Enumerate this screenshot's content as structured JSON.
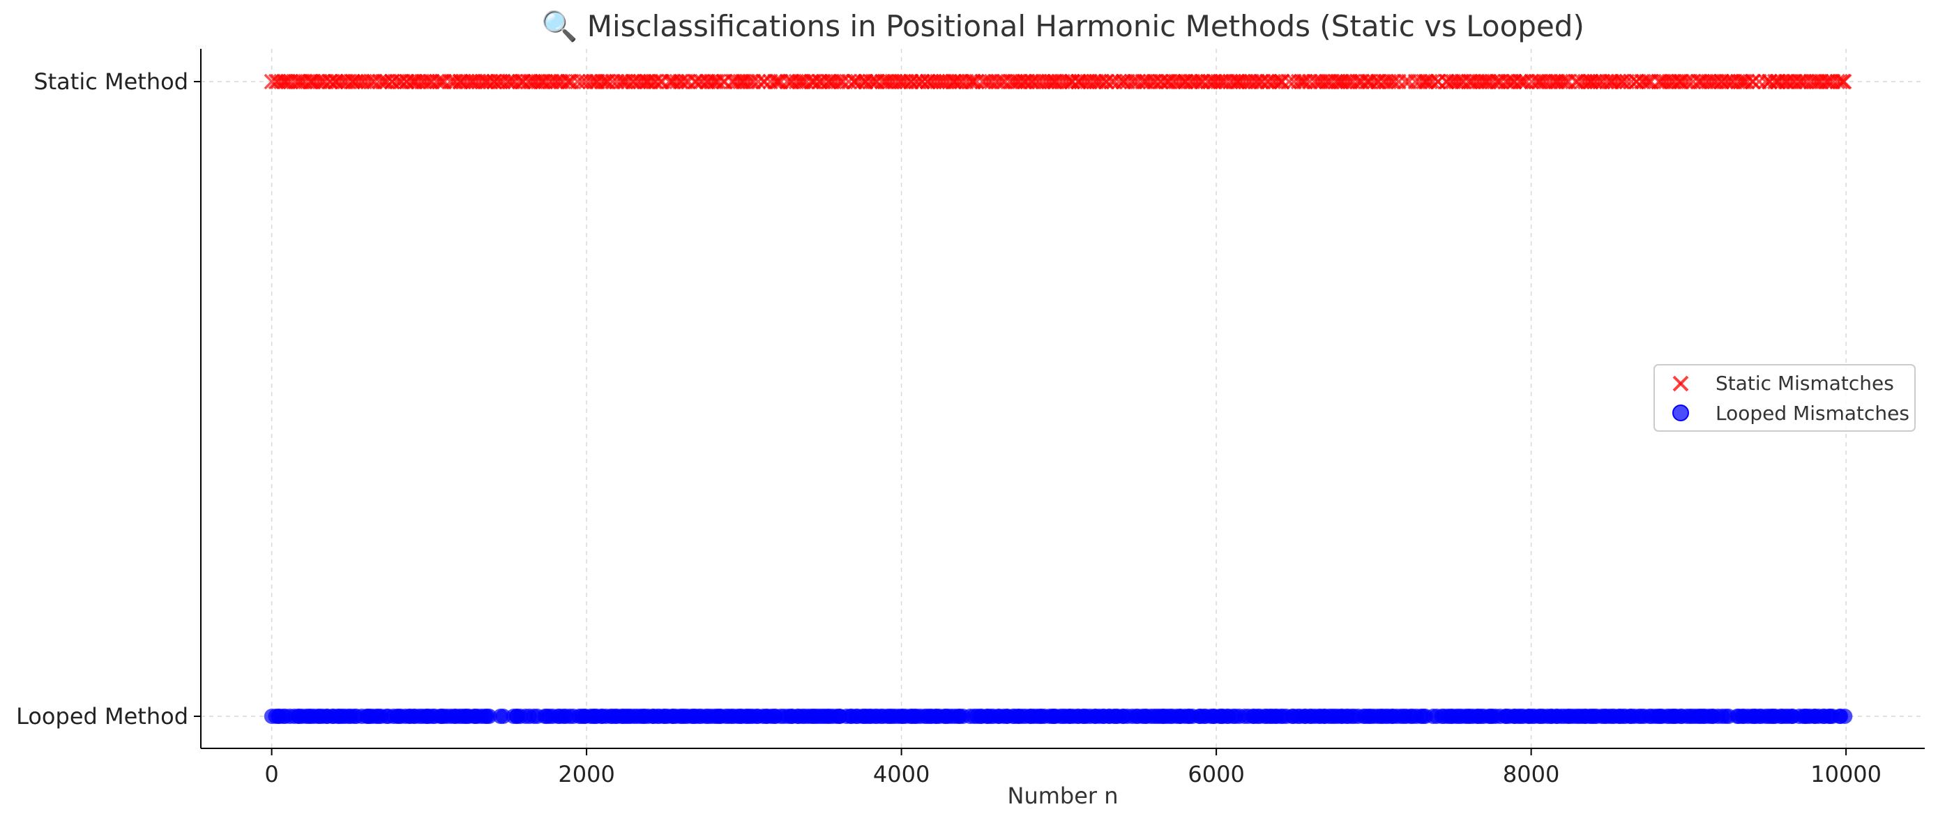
{
  "chart_data": {
    "type": "scatter",
    "title": "🔍 Misclassifications in Positional Harmonic Methods (Static vs Looped)",
    "xlabel": "Number n",
    "ylabel": "",
    "xlim": [
      -450,
      10500
    ],
    "x_ticks": [
      0,
      2000,
      4000,
      6000,
      8000,
      10000
    ],
    "y_categories": [
      "Looped Method",
      "Static Method"
    ],
    "grid": true,
    "legend_position": "center-right",
    "series": [
      {
        "name": "Static Mismatches",
        "category": "Static Method",
        "marker": "x",
        "color": "#ff0000",
        "x_range": [
          1,
          10000
        ],
        "distribution": "dense"
      },
      {
        "name": "Looped Mismatches",
        "category": "Looped Method",
        "marker": "circle",
        "color": "#0000ff",
        "x_range": [
          1,
          10000
        ],
        "distribution": "dense"
      }
    ]
  }
}
